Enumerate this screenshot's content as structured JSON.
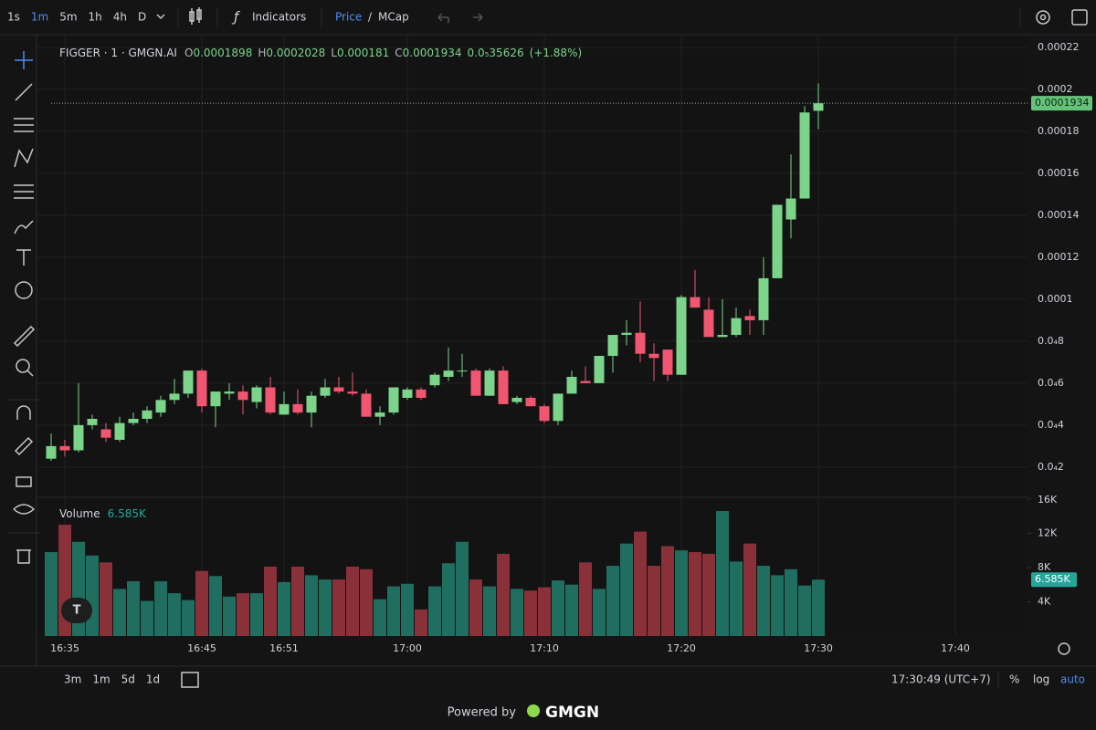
{
  "toolbar": {
    "intervals": [
      "1s",
      "1m",
      "5m",
      "1h",
      "4h",
      "D"
    ],
    "indicators": "Indicators",
    "price": "Price",
    "slash": "/",
    "mcap": "MCap"
  },
  "chart_data": {
    "type": "candlestick",
    "title": "FIGGER · 1 · GMGN.AI",
    "x": [
      "16:34",
      "16:35",
      "16:36",
      "16:37",
      "16:38",
      "16:39",
      "16:40",
      "16:41",
      "16:42",
      "16:43",
      "16:44",
      "16:45",
      "16:46",
      "16:47",
      "16:48",
      "16:49",
      "16:50",
      "16:51",
      "16:52",
      "16:53",
      "16:54",
      "16:55",
      "16:56",
      "16:57",
      "16:58",
      "16:59",
      "17:00",
      "17:01",
      "17:02",
      "17:03",
      "17:04",
      "17:05",
      "17:06",
      "17:07",
      "17:08",
      "17:09",
      "17:10",
      "17:11",
      "17:12",
      "17:13",
      "17:14",
      "17:15",
      "17:16",
      "17:17",
      "17:18",
      "17:19",
      "17:20",
      "17:21",
      "17:22",
      "17:23",
      "17:24",
      "17:25",
      "17:26",
      "17:27",
      "17:28",
      "17:29",
      "17:30"
    ],
    "open": [
      2.4e-05,
      3e-05,
      2.8e-05,
      4e-05,
      3.8e-05,
      3.3e-05,
      4.1e-05,
      4.3e-05,
      4.6e-05,
      5.2e-05,
      5.5e-05,
      6.6e-05,
      4.9e-05,
      5.5e-05,
      5.6e-05,
      5.1e-05,
      5.8e-05,
      4.5e-05,
      5e-05,
      4.6e-05,
      5.4e-05,
      5.8e-05,
      5.6e-05,
      5.5e-05,
      4.4e-05,
      4.6e-05,
      5.3e-05,
      5.7e-05,
      5.9e-05,
      6.3e-05,
      6.6e-05,
      6.6e-05,
      5.4e-05,
      6.6e-05,
      5.1e-05,
      5.3e-05,
      4.9e-05,
      4.2e-05,
      5.5e-05,
      6.1e-05,
      6e-05,
      7.3e-05,
      8.3e-05,
      8.4e-05,
      7.4e-05,
      7.6e-05,
      6.4e-05,
      0.000101,
      9.5e-05,
      8.2e-05,
      8.3e-05,
      9.2e-05,
      9e-05,
      0.00011,
      0.000138,
      0.000148,
      0.0001898
    ],
    "high": [
      3.6e-05,
      3.3e-05,
      6e-05,
      4.5e-05,
      4.1e-05,
      4.4e-05,
      4.6e-05,
      4.9e-05,
      5.4e-05,
      6.2e-05,
      6.6e-05,
      6.7e-05,
      5.6e-05,
      6e-05,
      5.9e-05,
      5.9e-05,
      6.3e-05,
      5.6e-05,
      5.7e-05,
      5.6e-05,
      6.2e-05,
      6.3e-05,
      6.5e-05,
      5.7e-05,
      4.9e-05,
      5.8e-05,
      5.8e-05,
      5.8e-05,
      6.5e-05,
      7.7e-05,
      7.4e-05,
      6.7e-05,
      6.7e-05,
      6.8e-05,
      5.4e-05,
      5.4e-05,
      5e-05,
      5.5e-05,
      6.6e-05,
      6.8e-05,
      7.3e-05,
      8.3e-05,
      9e-05,
      9.9e-05,
      7.9e-05,
      7.6e-05,
      0.000102,
      0.000114,
      0.000101,
      0.0001,
      9.6e-05,
      9.5e-05,
      0.00012,
      0.000145,
      0.000169,
      0.000192,
      0.0002028
    ],
    "low": [
      2.3e-05,
      2.5e-05,
      2.7e-05,
      3.8e-05,
      3.2e-05,
      3.2e-05,
      4e-05,
      4.1e-05,
      4.4e-05,
      5e-05,
      5.3e-05,
      4.6e-05,
      3.9e-05,
      5.2e-05,
      4.5e-05,
      4.8e-05,
      4.5e-05,
      4.5e-05,
      4.5e-05,
      3.9e-05,
      5.3e-05,
      5.5e-05,
      5.4e-05,
      4.4e-05,
      4e-05,
      4.5e-05,
      5.2e-05,
      5.2e-05,
      5.8e-05,
      6.1e-05,
      6.3e-05,
      5.4e-05,
      5.4e-05,
      5e-05,
      5e-05,
      4.9e-05,
      4.1e-05,
      4e-05,
      5.5e-05,
      6e-05,
      6e-05,
      6.5e-05,
      7.8e-05,
      7e-05,
      6.1e-05,
      6.1e-05,
      6.4e-05,
      9.6e-05,
      8.2e-05,
      8.2e-05,
      8.2e-05,
      8.3e-05,
      8.3e-05,
      0.00011,
      0.000129,
      0.000148,
      0.000181
    ],
    "close": [
      3e-05,
      2.8e-05,
      4e-05,
      4.3e-05,
      3.4e-05,
      4.1e-05,
      4.3e-05,
      4.7e-05,
      5.2e-05,
      5.5e-05,
      6.6e-05,
      4.9e-05,
      5.6e-05,
      5.6e-05,
      5.2e-05,
      5.8e-05,
      4.6e-05,
      5e-05,
      4.6e-05,
      5.4e-05,
      5.8e-05,
      5.6e-05,
      5.5e-05,
      4.4e-05,
      4.6e-05,
      5.8e-05,
      5.7e-05,
      5.3e-05,
      6.4e-05,
      6.6e-05,
      6.6e-05,
      5.4e-05,
      6.6e-05,
      5e-05,
      5.3e-05,
      4.9e-05,
      4.2e-05,
      5.5e-05,
      6.3e-05,
      6e-05,
      7.3e-05,
      8.3e-05,
      8.4e-05,
      7.4e-05,
      7.2e-05,
      6.4e-05,
      0.000101,
      9.6e-05,
      8.2e-05,
      8.3e-05,
      9.1e-05,
      9e-05,
      0.00011,
      0.000145,
      0.000148,
      0.000189,
      0.0001934
    ],
    "up_color": "#7bd48a",
    "down_color": "#f0566f",
    "ylim": [
      5.6e-06,
      0.0002252
    ],
    "yticks": [
      0.00022,
      0.0002,
      0.00018,
      0.00016,
      0.00014,
      0.00012,
      0.0001,
      {
        "value": 8e-05,
        "label": "0.0₄8"
      },
      {
        "value": 6e-05,
        "label": "0.0₄6"
      },
      {
        "value": 4e-05,
        "label": "0.0₄4"
      },
      {
        "value": 2e-05,
        "label": "0.0₄2"
      }
    ],
    "xlim": [
      "16:33",
      "17:45"
    ],
    "xticks": [
      "16:35",
      "16:45",
      "16:51",
      "17:00",
      "17:10",
      "17:20",
      "17:30",
      "17:40"
    ],
    "grid": true,
    "legend": {
      "o": "O",
      "h": "H",
      "l": "L",
      "c": "C",
      "change": "0.0₅35626",
      "change_pct": "(+1.88%)"
    },
    "volume": {
      "name": "Volume",
      "value_label": "6.585K",
      "up_color": "#1f6e60",
      "down_color": "#8a3039",
      "values": [
        9800,
        13000,
        11000,
        9400,
        8600,
        5500,
        6400,
        4100,
        6400,
        5000,
        4200,
        7600,
        7000,
        4600,
        5000,
        5000,
        8100,
        6300,
        8100,
        7100,
        6600,
        6600,
        8100,
        7800,
        4300,
        5800,
        6100,
        3100,
        5800,
        8500,
        11000,
        6600,
        5800,
        9600,
        5500,
        5300,
        5700,
        6500,
        6000,
        8600,
        5500,
        8200,
        10800,
        12200,
        8200,
        10500,
        10000,
        9800,
        9600,
        14600,
        8700,
        10800,
        8200,
        7100,
        7800,
        5900,
        6585
      ],
      "ylim": [
        0,
        16200
      ],
      "yticks": [
        {
          "value": 4000,
          "label": "4K"
        },
        {
          "value": 8000,
          "label": "8K"
        },
        {
          "value": 12000,
          "label": "12K"
        },
        {
          "value": 16000,
          "label": "16K"
        }
      ]
    }
  },
  "footer": {
    "ranges": [
      "3m",
      "1m",
      "5d",
      "1d"
    ],
    "time": "17:30:49 (UTC+7)",
    "pct": "%",
    "log": "log",
    "auto": "auto",
    "powered": "Powered by",
    "brand": "GMGN"
  }
}
